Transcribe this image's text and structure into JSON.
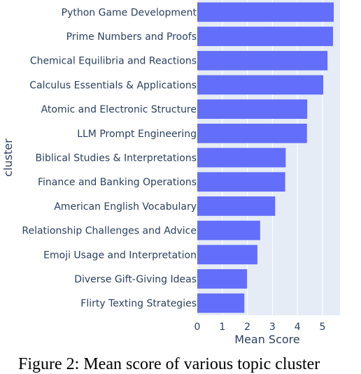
{
  "chart_data": {
    "type": "bar",
    "orientation": "horizontal",
    "categories": [
      "Python Game Development",
      "Prime Numbers and Proofs",
      "Chemical Equilibria and Reactions",
      "Calculus Essentials & Applications",
      "Atomic and Electronic Structure",
      "LLM Prompt Engineering",
      "Biblical Studies & Interpretations",
      "Finance and Banking Operations",
      "American English Vocabulary",
      "Relationship Challenges and Advice",
      "Emoji Usage and Interpretation",
      "Diverse Gift-Giving Ideas",
      "Flirty Texting Strategies"
    ],
    "values": [
      5.45,
      5.42,
      5.2,
      5.03,
      4.39,
      4.38,
      3.53,
      3.51,
      3.11,
      2.51,
      2.4,
      1.99,
      1.88
    ],
    "xlabel": "Mean Score",
    "ylabel": "cluster",
    "xlim": [
      0,
      5.7
    ],
    "xticks": [
      "0",
      "1",
      "2",
      "3",
      "4",
      "5"
    ],
    "grid": true,
    "colors": {
      "bar": "#636efa",
      "plot_bg": "#e5ecf6",
      "grid": "#ffffff",
      "text": "#2a3f5f"
    }
  },
  "caption": "Figure 2: Mean score of various topic cluster"
}
